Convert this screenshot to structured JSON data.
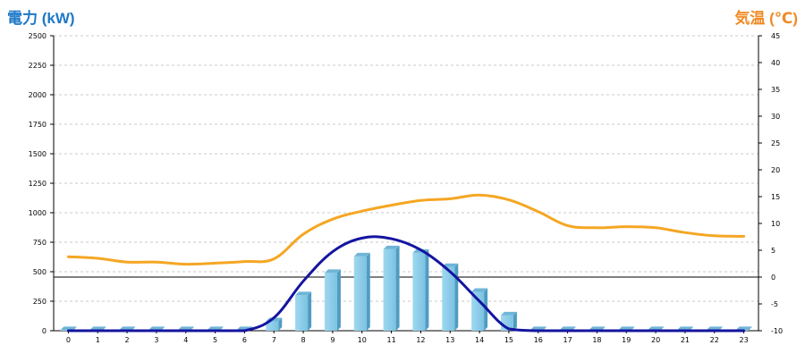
{
  "chart_data": {
    "type": "bar",
    "left_axis_label": "電力 (kW)",
    "right_axis_label": "気温 (℃)",
    "categories": [
      "0",
      "1",
      "2",
      "3",
      "4",
      "5",
      "6",
      "7",
      "8",
      "9",
      "10",
      "11",
      "12",
      "13",
      "14",
      "15",
      "16",
      "17",
      "18",
      "19",
      "20",
      "21",
      "22",
      "23"
    ],
    "left_ylim": [
      0,
      2500
    ],
    "left_ticks": [
      0,
      250,
      500,
      750,
      1000,
      1250,
      1500,
      1750,
      2000,
      2250,
      2500
    ],
    "right_ylim": [
      -10,
      45
    ],
    "right_ticks": [
      -10,
      -5,
      0,
      5,
      10,
      15,
      20,
      25,
      30,
      35,
      40,
      45
    ],
    "grid": true,
    "series": [
      {
        "kind": "bar",
        "axis": "left",
        "color": "#87ceeb",
        "values": [
          5,
          5,
          5,
          5,
          5,
          5,
          5,
          80,
          300,
          490,
          630,
          690,
          660,
          540,
          330,
          130,
          5,
          5,
          5,
          5,
          5,
          5,
          5,
          5
        ]
      },
      {
        "kind": "line",
        "axis": "left",
        "color": "#1414a0",
        "values": [
          0,
          0,
          0,
          0,
          0,
          0,
          0,
          110,
          420,
          670,
          785,
          780,
          685,
          500,
          250,
          15,
          0,
          0,
          0,
          0,
          0,
          0,
          0,
          0
        ]
      },
      {
        "kind": "line",
        "axis": "right",
        "color": "#f5a623",
        "values": [
          3.8,
          3.5,
          2.8,
          2.8,
          2.4,
          2.6,
          2.9,
          3.4,
          8.0,
          10.8,
          12.3,
          13.4,
          14.3,
          14.6,
          15.3,
          14.4,
          12.2,
          9.6,
          9.2,
          9.4,
          9.2,
          8.3,
          7.7,
          7.6
        ]
      }
    ]
  }
}
